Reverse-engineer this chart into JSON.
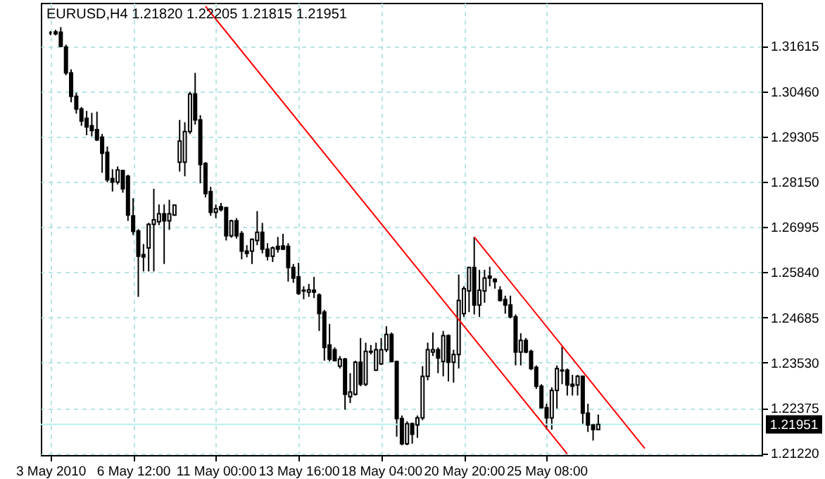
{
  "chart_data": {
    "type": "candlestick",
    "title": "EURUSD,H4  1.21820 1.22205 1.21815 1.21951",
    "categories": [
      "3 May 2010",
      null,
      null,
      null,
      null,
      null,
      null,
      null,
      null,
      null,
      null,
      null,
      null,
      null,
      null,
      null,
      "6 May 12:00",
      null,
      null,
      null,
      null,
      null,
      null,
      null,
      null,
      null,
      null,
      null,
      null,
      null,
      null,
      null,
      "11 May 00:00",
      null,
      null,
      null,
      null,
      null,
      null,
      null,
      null,
      null,
      null,
      null,
      null,
      null,
      null,
      null,
      "13 May 16:00",
      null,
      null,
      null,
      null,
      null,
      null,
      null,
      null,
      null,
      null,
      null,
      null,
      null,
      null,
      null,
      "18 May 04:00",
      null,
      null,
      null,
      null,
      null,
      null,
      null,
      null,
      null,
      null,
      null,
      null,
      null,
      null,
      null,
      "20 May 20:00",
      null,
      null,
      null,
      null,
      null,
      null,
      null,
      null,
      null,
      null,
      null,
      null,
      null,
      null,
      null,
      "25 May 08:00",
      null,
      null,
      null,
      null,
      null,
      null,
      null,
      null,
      null,
      null,
      null,
      null,
      null,
      null,
      null,
      null,
      null,
      null,
      null,
      null,
      null,
      null,
      null,
      null,
      null,
      null,
      null,
      null,
      null,
      null,
      null,
      null,
      null,
      null,
      null,
      null,
      null,
      null,
      null,
      null
    ],
    "ohlc": [
      [
        1.3195,
        1.32,
        1.3189,
        1.3195
      ],
      [
        1.3198,
        1.3203,
        1.3189,
        1.3193
      ],
      [
        1.3197,
        1.321,
        1.3159,
        1.3161
      ],
      [
        1.3159,
        1.3165,
        1.3087,
        1.3093
      ],
      [
        1.3093,
        1.3102,
        1.3018,
        1.3033
      ],
      [
        1.3033,
        1.3042,
        1.2989,
        1.3001
      ],
      [
        1.3001,
        1.3006,
        1.2958,
        1.297
      ],
      [
        1.2977,
        1.2996,
        1.2934,
        1.2955
      ],
      [
        1.2958,
        1.2991,
        1.2931,
        1.2946
      ],
      [
        1.2948,
        1.2994,
        1.2919,
        1.2922
      ],
      [
        1.2929,
        1.2937,
        1.2838,
        1.2888
      ],
      [
        1.289,
        1.2905,
        1.2814,
        1.282
      ],
      [
        1.2823,
        1.2847,
        1.279,
        1.2814
      ],
      [
        1.2814,
        1.2854,
        1.2808,
        1.2845
      ],
      [
        1.2844,
        1.2845,
        1.2787,
        1.2797
      ],
      [
        1.2829,
        1.2833,
        1.2715,
        1.273
      ],
      [
        1.2728,
        1.2773,
        1.2679,
        1.2688
      ],
      [
        1.2689,
        1.2694,
        1.2521,
        1.2625
      ],
      [
        1.2629,
        1.2656,
        1.2586,
        1.2623
      ],
      [
        1.2646,
        1.271,
        1.2586,
        1.2706
      ],
      [
        1.2706,
        1.2797,
        1.2586,
        1.2718
      ],
      [
        1.2713,
        1.2757,
        1.2704,
        1.2733
      ],
      [
        1.2733,
        1.2757,
        1.2605,
        1.2715
      ],
      [
        1.2715,
        1.2769,
        1.2692,
        1.2733
      ],
      [
        1.273,
        1.2757,
        1.2728,
        1.2755
      ],
      [
        1.2865,
        1.2973,
        1.2841,
        1.2919
      ],
      [
        1.2865,
        1.2967,
        1.2829,
        1.2943
      ],
      [
        1.2943,
        1.3045,
        1.2937,
        1.3039
      ],
      [
        1.3039,
        1.3093,
        1.2961,
        1.2973
      ],
      [
        1.2973,
        1.2985,
        1.2811,
        1.2859
      ],
      [
        1.2862,
        1.2865,
        1.2775,
        1.2785
      ],
      [
        1.279,
        1.2802,
        1.2728,
        1.2737
      ],
      [
        1.2737,
        1.2757,
        1.2722,
        1.2746
      ],
      [
        1.2751,
        1.2761,
        1.2739,
        1.2744
      ],
      [
        1.2749,
        1.2751,
        1.2665,
        1.2677
      ],
      [
        1.2677,
        1.2718,
        1.2672,
        1.2715
      ],
      [
        1.2715,
        1.2722,
        1.267,
        1.2677
      ],
      [
        1.2683,
        1.2689,
        1.2617,
        1.2638
      ],
      [
        1.2638,
        1.2653,
        1.2622,
        1.2632
      ],
      [
        1.2638,
        1.267,
        1.2605,
        1.2668
      ],
      [
        1.2665,
        1.274,
        1.2653,
        1.2686
      ],
      [
        1.2686,
        1.271,
        1.2632,
        1.2643
      ],
      [
        1.2643,
        1.2658,
        1.2614,
        1.2625
      ],
      [
        1.2625,
        1.265,
        1.261,
        1.2646
      ],
      [
        1.265,
        1.2674,
        1.2634,
        1.2643
      ],
      [
        1.2651,
        1.2682,
        1.2641,
        1.2643
      ],
      [
        1.265,
        1.2658,
        1.256,
        1.2596
      ],
      [
        1.2596,
        1.2605,
        1.2557,
        1.2569
      ],
      [
        1.2572,
        1.2608,
        1.2526,
        1.253
      ],
      [
        1.2538,
        1.2548,
        1.2515,
        1.2536
      ],
      [
        1.2533,
        1.2554,
        1.2521,
        1.2539
      ],
      [
        1.2538,
        1.2572,
        1.2518,
        1.2533
      ],
      [
        1.2526,
        1.253,
        1.2434,
        1.2478
      ],
      [
        1.2482,
        1.2488,
        1.2358,
        1.2392
      ],
      [
        1.2398,
        1.2452,
        1.2356,
        1.2362
      ],
      [
        1.2386,
        1.2392,
        1.2356,
        1.2358
      ],
      [
        1.2344,
        1.237,
        1.2338,
        1.2362
      ],
      [
        1.2362,
        1.2365,
        1.2233,
        1.2272
      ],
      [
        1.2266,
        1.2326,
        1.225,
        1.2278
      ],
      [
        1.2272,
        1.2358,
        1.2269,
        1.2354
      ],
      [
        1.2354,
        1.2416,
        1.2293,
        1.2298
      ],
      [
        1.2298,
        1.2404,
        1.2293,
        1.2382
      ],
      [
        1.238,
        1.2398,
        1.2374,
        1.2382
      ],
      [
        1.2334,
        1.2404,
        1.2332,
        1.2386
      ],
      [
        1.235,
        1.2416,
        1.2347,
        1.2386
      ],
      [
        1.2386,
        1.2446,
        1.238,
        1.2425
      ],
      [
        1.2425,
        1.243,
        1.2354,
        1.2356
      ],
      [
        1.2356,
        1.2358,
        1.2164,
        1.221
      ],
      [
        1.221,
        1.2218,
        1.2142,
        1.2146
      ],
      [
        1.2146,
        1.2203,
        1.2142,
        1.2197
      ],
      [
        1.2197,
        1.22,
        1.2146,
        1.217
      ],
      [
        1.2194,
        1.2218,
        1.2161,
        1.2212
      ],
      [
        1.2212,
        1.2344,
        1.2206,
        1.2318
      ],
      [
        1.2318,
        1.2404,
        1.2308,
        1.2386
      ],
      [
        1.238,
        1.243,
        1.237,
        1.2386
      ],
      [
        1.2386,
        1.2392,
        1.2326,
        1.2365
      ],
      [
        1.2356,
        1.2434,
        1.2318,
        1.2422
      ],
      [
        1.2422,
        1.2425,
        1.2305,
        1.2354
      ],
      [
        1.2354,
        1.2386,
        1.2302,
        1.2374
      ],
      [
        1.2374,
        1.2578,
        1.2338,
        1.2512
      ],
      [
        1.2478,
        1.2548,
        1.247,
        1.2542
      ],
      [
        1.2536,
        1.2598,
        1.2482,
        1.2596
      ],
      [
        1.2596,
        1.2674,
        1.2476,
        1.25
      ],
      [
        1.25,
        1.259,
        1.247,
        1.2538
      ],
      [
        1.2536,
        1.259,
        1.2506,
        1.2569
      ],
      [
        1.2574,
        1.2598,
        1.2548,
        1.2569
      ],
      [
        1.2566,
        1.2569,
        1.2542,
        1.256
      ],
      [
        1.2538,
        1.2548,
        1.2509,
        1.2512
      ],
      [
        1.2514,
        1.2524,
        1.2478,
        1.25
      ],
      [
        1.25,
        1.2524,
        1.2466,
        1.247
      ],
      [
        1.247,
        1.2476,
        1.2346,
        1.238
      ],
      [
        1.238,
        1.2428,
        1.2346,
        1.241
      ],
      [
        1.241,
        1.2416,
        1.2377,
        1.238
      ],
      [
        1.2382,
        1.2386,
        1.2334,
        1.2338
      ],
      [
        1.2341,
        1.2346,
        1.2286,
        1.2293
      ],
      [
        1.2293,
        1.2298,
        1.2236,
        1.2238
      ],
      [
        1.2238,
        1.2248,
        1.2182,
        1.2212
      ],
      [
        1.2212,
        1.229,
        1.2182,
        1.2282
      ],
      [
        1.2282,
        1.2346,
        1.2236,
        1.2338
      ],
      [
        1.2334,
        1.2394,
        1.2298,
        1.2332
      ],
      [
        1.2334,
        1.2338,
        1.2269,
        1.2296
      ],
      [
        1.2298,
        1.2322,
        1.2269,
        1.2293
      ],
      [
        1.2296,
        1.2322,
        1.2269,
        1.2318
      ],
      [
        1.2318,
        1.232,
        1.2194,
        1.2224
      ],
      [
        1.2224,
        1.2248,
        1.2176,
        1.2194
      ],
      [
        1.2194,
        1.2197,
        1.2154,
        1.2182
      ],
      [
        1.2182,
        1.22205,
        1.21815,
        1.21951
      ],
      null,
      null,
      null,
      null,
      null,
      null,
      null,
      null,
      null,
      null,
      null,
      null,
      null,
      null,
      null,
      null,
      null,
      null,
      null,
      null,
      null,
      null,
      null,
      null,
      null,
      null,
      null,
      null,
      null,
      null
    ],
    "series": [
      {
        "type": "line",
        "color": "#ff0000",
        "values": [
          null,
          null,
          null,
          null,
          null,
          null,
          null,
          null,
          null,
          null,
          null,
          null,
          null,
          null,
          null,
          null,
          null,
          null,
          null,
          null,
          null,
          null,
          null,
          null,
          null,
          null,
          null,
          null,
          null,
          null,
          1.3263,
          null,
          null,
          null,
          null,
          null,
          null,
          null,
          null,
          null,
          null,
          null,
          null,
          null,
          null,
          null,
          null,
          null,
          null,
          null,
          null,
          null,
          null,
          null,
          null,
          null,
          null,
          null,
          null,
          null,
          null,
          null,
          null,
          null,
          null,
          null,
          null,
          null,
          null,
          null,
          null,
          null,
          null,
          null,
          null,
          null,
          null,
          null,
          null,
          null,
          null,
          null,
          null,
          null,
          null,
          null,
          null,
          null,
          null,
          null,
          null,
          null,
          null,
          null,
          null,
          null,
          null,
          null,
          null,
          null,
          1.212,
          null,
          null,
          null,
          null,
          null,
          null,
          null,
          null,
          null,
          null,
          null,
          null,
          null,
          null,
          null,
          null,
          null,
          null,
          null,
          null,
          null,
          null,
          null,
          null,
          null,
          null,
          null,
          null,
          null,
          null,
          null,
          null,
          null,
          null,
          null,
          null
        ]
      },
      {
        "type": "line",
        "color": "#ff0000",
        "values": [
          null,
          null,
          null,
          null,
          null,
          null,
          null,
          null,
          null,
          null,
          null,
          null,
          null,
          null,
          null,
          null,
          null,
          null,
          null,
          null,
          null,
          null,
          null,
          null,
          null,
          null,
          null,
          null,
          null,
          null,
          null,
          null,
          null,
          null,
          null,
          null,
          null,
          null,
          null,
          null,
          null,
          null,
          null,
          null,
          null,
          null,
          null,
          null,
          null,
          null,
          null,
          null,
          null,
          null,
          null,
          null,
          null,
          null,
          null,
          null,
          null,
          null,
          null,
          null,
          null,
          null,
          null,
          null,
          null,
          null,
          null,
          null,
          null,
          null,
          null,
          null,
          null,
          null,
          null,
          null,
          null,
          null,
          1.2674,
          null,
          null,
          null,
          null,
          null,
          null,
          null,
          null,
          null,
          null,
          null,
          null,
          null,
          null,
          null,
          null,
          null,
          null,
          null,
          null,
          null,
          null,
          null,
          null,
          null,
          null,
          null,
          null,
          null,
          null,
          null,
          null,
          1.2134,
          null,
          null,
          null,
          null,
          null,
          null,
          null,
          null,
          null,
          null,
          null,
          null,
          null,
          null,
          null,
          null,
          null,
          null,
          null,
          null,
          null
        ]
      }
    ],
    "ylim": [
      1.2117,
      1.3272
    ],
    "yticks": [
      {
        "value": 1.2122,
        "label": "1.21220"
      },
      1.22375,
      {
        "value": 1.2353,
        "label": "1.23530"
      },
      1.24685,
      {
        "value": 1.2584,
        "label": "1.25840"
      },
      1.26995,
      {
        "value": 1.2815,
        "label": "1.28150"
      },
      1.29305,
      {
        "value": 1.3046,
        "label": "1.30460"
      },
      1.31615
    ],
    "ref_lines": [
      {
        "axis": "y",
        "value": 1.21951,
        "label": "1.21951",
        "color": "#b4f0f0"
      }
    ],
    "grid": true
  }
}
